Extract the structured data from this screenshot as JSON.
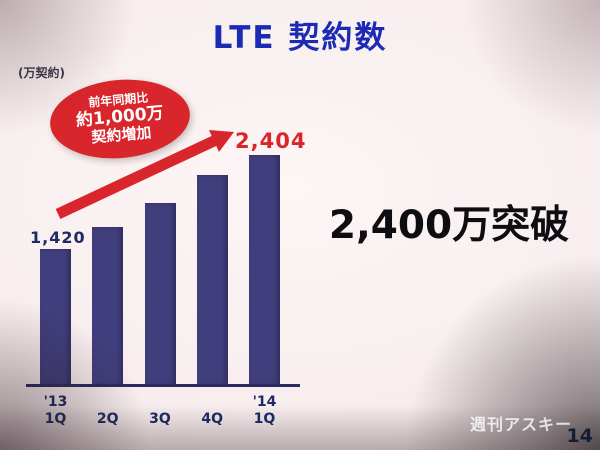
{
  "slide": {
    "title": "LTE 契約数",
    "unit_label": "(万契約)",
    "callout": {
      "line1": "前年同期比",
      "line2": "約1,000万",
      "line3": "契約増加"
    },
    "highlight_text": "2,400万突破",
    "watermark": "週刊アスキー",
    "page_number": "14"
  },
  "colors": {
    "title_blue": "#1b2bb4",
    "bar_navy": "#413e7e",
    "axis_navy": "#2c2b60",
    "accent_red": "#d9252c",
    "value_navy": "#1d2a66",
    "highlight_black": "#0d0d12"
  },
  "chart_data": {
    "type": "bar",
    "title": "LTE 契約数",
    "ylabel": "万契約",
    "categories": [
      "'13\n1Q",
      "2Q",
      "3Q",
      "4Q",
      "'14\n1Q"
    ],
    "values": [
      1420,
      1650,
      1900,
      2200,
      2404
    ],
    "ylim": [
      0,
      2500
    ],
    "grid": false,
    "legend": "none",
    "first_bar_label": "1,420",
    "last_bar_label": "2,404",
    "annotation": "前年同期比 約1,000万 契約増加 (year-over-year increase callout with arrow to latest bar)"
  }
}
